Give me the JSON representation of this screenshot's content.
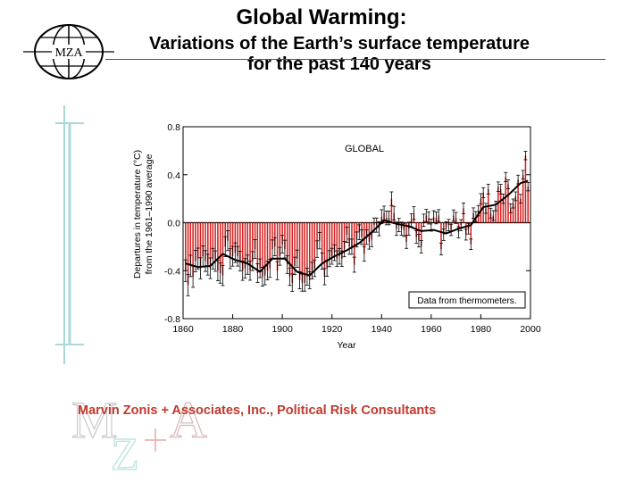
{
  "header": {
    "title": "Global Warming:",
    "subtitle_line1": "Variations of the Earth’s surface temperature",
    "subtitle_line2": "for the past 140 years"
  },
  "logo": {
    "text": "MZA"
  },
  "watermark": {
    "letters": [
      "M",
      "Z",
      "A"
    ]
  },
  "footer": {
    "text": "Marvin Zonis + Associates, Inc., Political Risk Consultants"
  },
  "colors": {
    "bar": "#d42020",
    "line": "#000000",
    "footer": "#c0392b",
    "rule": "#2e6b2e",
    "deco": "#a8d8d8"
  },
  "chart_data": {
    "type": "bar",
    "title": "GLOBAL",
    "xlabel": "Year",
    "ylabel_line1": "Departures in temperature (°C)",
    "ylabel_line2": "from the 1961–1990 average",
    "xlim": [
      1860,
      2000
    ],
    "ylim": [
      -0.8,
      0.8
    ],
    "xticks": [
      1860,
      1880,
      1900,
      1920,
      1940,
      1960,
      1980,
      2000
    ],
    "yticks": [
      0.8,
      0.4,
      0.0,
      -0.4,
      -0.8
    ],
    "ytick_labels": [
      "0.8",
      "0.4",
      "0.0",
      "-0.4",
      "-0.8"
    ],
    "annotation": "Data from thermometers.",
    "anomaly_years": [
      1861,
      1862,
      1863,
      1864,
      1865,
      1866,
      1867,
      1868,
      1869,
      1870,
      1871,
      1872,
      1873,
      1874,
      1875,
      1876,
      1877,
      1878,
      1879,
      1880,
      1881,
      1882,
      1883,
      1884,
      1885,
      1886,
      1887,
      1888,
      1889,
      1890,
      1891,
      1892,
      1893,
      1894,
      1895,
      1896,
      1897,
      1898,
      1899,
      1900,
      1901,
      1902,
      1903,
      1904,
      1905,
      1906,
      1907,
      1908,
      1909,
      1910,
      1911,
      1912,
      1913,
      1914,
      1915,
      1916,
      1917,
      1918,
      1919,
      1920,
      1921,
      1922,
      1923,
      1924,
      1925,
      1926,
      1927,
      1928,
      1929,
      1930,
      1931,
      1932,
      1933,
      1934,
      1935,
      1936,
      1937,
      1938,
      1939,
      1940,
      1941,
      1942,
      1943,
      1944,
      1945,
      1946,
      1947,
      1948,
      1949,
      1950,
      1951,
      1952,
      1953,
      1954,
      1955,
      1956,
      1957,
      1958,
      1959,
      1960,
      1961,
      1962,
      1963,
      1964,
      1965,
      1966,
      1967,
      1968,
      1969,
      1970,
      1971,
      1972,
      1973,
      1974,
      1975,
      1976,
      1977,
      1978,
      1979,
      1980,
      1981,
      1982,
      1983,
      1984,
      1985,
      1986,
      1987,
      1988,
      1989,
      1990,
      1991,
      1992,
      1993,
      1994,
      1995,
      1996,
      1997,
      1998,
      1999
    ],
    "anomalies": [
      -0.4,
      -0.52,
      -0.36,
      -0.45,
      -0.32,
      -0.3,
      -0.38,
      -0.28,
      -0.32,
      -0.35,
      -0.38,
      -0.3,
      -0.32,
      -0.4,
      -0.42,
      -0.44,
      -0.2,
      -0.15,
      -0.3,
      -0.28,
      -0.25,
      -0.28,
      -0.32,
      -0.4,
      -0.38,
      -0.35,
      -0.4,
      -0.32,
      -0.22,
      -0.42,
      -0.38,
      -0.45,
      -0.44,
      -0.4,
      -0.38,
      -0.22,
      -0.2,
      -0.4,
      -0.28,
      -0.18,
      -0.22,
      -0.35,
      -0.45,
      -0.5,
      -0.36,
      -0.3,
      -0.48,
      -0.5,
      -0.5,
      -0.45,
      -0.48,
      -0.4,
      -0.38,
      -0.22,
      -0.15,
      -0.32,
      -0.45,
      -0.38,
      -0.3,
      -0.28,
      -0.25,
      -0.3,
      -0.28,
      -0.3,
      -0.22,
      -0.1,
      -0.2,
      -0.2,
      -0.35,
      -0.14,
      -0.08,
      -0.12,
      -0.26,
      -0.12,
      -0.16,
      -0.14,
      -0.02,
      -0.02,
      -0.05,
      0.05,
      0.08,
      0.04,
      0.04,
      0.2,
      0.08,
      -0.05,
      -0.02,
      -0.05,
      -0.06,
      -0.16,
      -0.05,
      0.02,
      0.08,
      -0.12,
      -0.15,
      -0.2,
      0.02,
      0.06,
      0.04,
      -0.02,
      0.05,
      0.04,
      0.06,
      -0.22,
      -0.1,
      -0.04,
      -0.02,
      -0.06,
      0.06,
      0.04,
      -0.08,
      -0.02,
      0.12,
      -0.1,
      -0.05,
      -0.18,
      0.08,
      0.05,
      0.1,
      0.2,
      0.25,
      0.12,
      0.28,
      0.08,
      0.06,
      0.14,
      0.3,
      0.28,
      0.2,
      0.38,
      0.32,
      0.12,
      0.16,
      0.22,
      0.36,
      0.2,
      0.4,
      0.56,
      0.3
    ],
    "smoothed_years": [
      1861,
      1866,
      1871,
      1876,
      1881,
      1886,
      1891,
      1896,
      1901,
      1906,
      1911,
      1916,
      1921,
      1926,
      1931,
      1936,
      1941,
      1946,
      1951,
      1956,
      1961,
      1966,
      1971,
      1976,
      1981,
      1986,
      1991,
      1996,
      1999
    ],
    "smoothed": [
      -0.34,
      -0.37,
      -0.36,
      -0.26,
      -0.31,
      -0.34,
      -0.41,
      -0.3,
      -0.3,
      -0.41,
      -0.44,
      -0.34,
      -0.28,
      -0.23,
      -0.17,
      -0.08,
      0.02,
      -0.01,
      -0.03,
      -0.07,
      -0.06,
      -0.09,
      -0.05,
      -0.02,
      0.13,
      0.15,
      0.23,
      0.33,
      0.35
    ]
  }
}
